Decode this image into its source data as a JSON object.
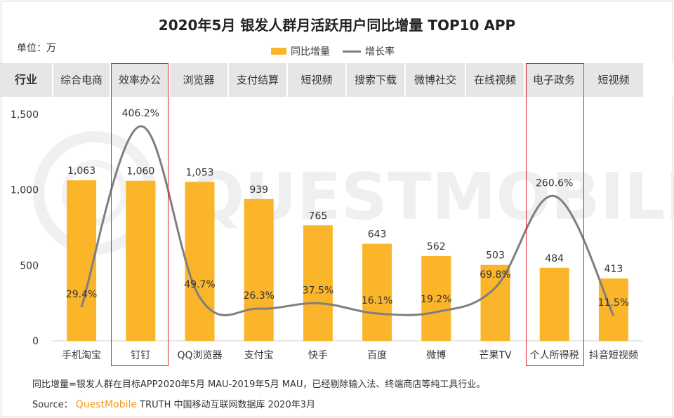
{
  "title": "2020年5月 银发人群月活跃用户同比增量 TOP10  APP",
  "unit_label": "单位：万",
  "legend": {
    "bar": "同比增量",
    "line": "增长率"
  },
  "watermark": "QUESTMOBILE",
  "industry_header": "行业",
  "industries": [
    "综合电商",
    "效率办公",
    "浏览器",
    "支付结算",
    "短视频",
    "搜索下载",
    "微博社交",
    "在线视频",
    "电子政务",
    "短视频"
  ],
  "highlighted_indices": [
    1,
    8
  ],
  "footnote": "同比增量=银发人群在目标APP2020年5月 MAU-2019年5月 MAU，已经剔除输入法、终端商店等纯工具行业。",
  "source": {
    "prefix": "Source：",
    "brand": "QuestMobile",
    "rest": "TRUTH 中国移动互联网数据库 2020年3月"
  },
  "colors": {
    "bar": "#FBB52B",
    "line": "#7F7F7F",
    "highlight": "#D9262C",
    "header_bg": "#E6E6E6"
  },
  "chart_data": {
    "type": "bar",
    "title": "2020年5月 银发人群月活跃用户同比增量 TOP10  APP",
    "xlabel": "",
    "ylabel": "单位：万",
    "ylim": [
      0,
      1500
    ],
    "yticks": [
      "0",
      "500",
      "1,000",
      "1,500"
    ],
    "ytick_values": [
      0,
      500,
      1000,
      1500
    ],
    "categories": [
      "手机淘宝",
      "钉钉",
      "QQ浏览器",
      "支付宝",
      "快手",
      "百度",
      "微博",
      "芒果TV",
      "个人所得税",
      "抖音短视频"
    ],
    "series": [
      {
        "name": "同比增量",
        "type": "bar",
        "values": [
          1063,
          1060,
          1053,
          939,
          765,
          643,
          562,
          503,
          484,
          413
        ],
        "labels": [
          "1,063",
          "1,060",
          "1,053",
          "939",
          "765",
          "643",
          "562",
          "503",
          "484",
          "413"
        ]
      },
      {
        "name": "增长率",
        "type": "line",
        "unit": "%",
        "values": [
          29.4,
          406.2,
          49.7,
          26.3,
          37.5,
          16.1,
          19.2,
          69.8,
          260.6,
          11.5
        ],
        "labels": [
          "29.4%",
          "406.2%",
          "49.7%",
          "26.3%",
          "37.5%",
          "16.1%",
          "19.2%",
          "69.8%",
          "260.6%",
          "11.5%"
        ]
      }
    ]
  }
}
